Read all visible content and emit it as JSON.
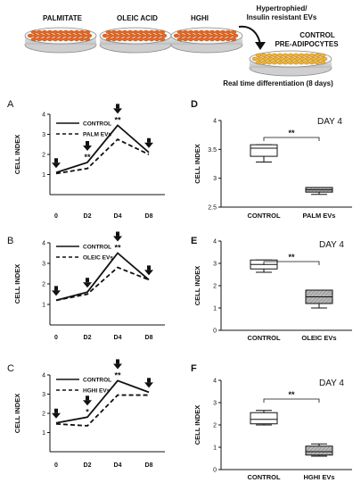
{
  "header": {
    "dishes": [
      "PALMITATE",
      "OLEIC ACID",
      "HGHI"
    ],
    "ev_label_line1": "Hypertrophied/",
    "ev_label_line2": "Insulin resistant EVs",
    "target_line1": "CONTROL",
    "target_line2": "PRE-ADIPOCYTES",
    "caption": "Real time differentiation (8 days)",
    "colors": {
      "dish_cells": "#e8661f",
      "target_cells": "#f0b62a"
    }
  },
  "chart_data": [
    {
      "panel": "A",
      "type": "line",
      "categories": [
        "0",
        "D2",
        "D4",
        "D8"
      ],
      "ylabel": "CELL INDEX",
      "ylim": [
        0,
        4
      ],
      "yticks": [
        1,
        2,
        3,
        4
      ],
      "series": [
        {
          "name": "CONTROL",
          "style": "solid",
          "values": [
            1.1,
            1.6,
            3.45,
            2.1
          ]
        },
        {
          "name": "PALM EVs",
          "style": "dashed",
          "values": [
            1.05,
            1.3,
            2.75,
            2.0
          ]
        }
      ],
      "significance": [
        "",
        "**",
        "**",
        ""
      ],
      "arrows": [
        true,
        true,
        true,
        true
      ]
    },
    {
      "panel": "B",
      "type": "line",
      "categories": [
        "0",
        "D2",
        "D4",
        "D8"
      ],
      "ylabel": "CELL INDEX",
      "ylim": [
        0,
        4
      ],
      "yticks": [
        1,
        2,
        3,
        4
      ],
      "series": [
        {
          "name": "CONTROL",
          "style": "solid",
          "values": [
            1.2,
            1.6,
            3.5,
            2.2
          ]
        },
        {
          "name": "OLEIC EVs",
          "style": "dashed",
          "values": [
            1.2,
            1.5,
            2.8,
            2.2
          ]
        }
      ],
      "significance": [
        "",
        "",
        "**",
        ""
      ],
      "arrows": [
        true,
        true,
        true,
        true
      ]
    },
    {
      "panel": "C",
      "type": "line",
      "categories": [
        "0",
        "D2",
        "D4",
        "D8"
      ],
      "ylabel": "CELL INDEX",
      "ylim": [
        0,
        4
      ],
      "yticks": [
        1,
        2,
        3,
        4
      ],
      "series": [
        {
          "name": "CONTROL",
          "style": "solid",
          "values": [
            1.5,
            1.8,
            3.7,
            3.1
          ]
        },
        {
          "name": "HGHI EVs",
          "style": "dashed",
          "values": [
            1.45,
            1.35,
            2.95,
            2.95
          ]
        }
      ],
      "significance": [
        "",
        "*",
        "**",
        ""
      ],
      "arrows": [
        true,
        true,
        true,
        true
      ]
    },
    {
      "panel": "D",
      "type": "box",
      "title": "DAY 4",
      "ylabel": "CELL INDEX",
      "ylim": [
        2.5,
        4
      ],
      "yticks": [
        2.5,
        3,
        3.5,
        4
      ],
      "categories": [
        "CONTROL",
        "PALM EVs"
      ],
      "boxes": [
        {
          "min": 3.28,
          "q1": 3.38,
          "median": 3.52,
          "q3": 3.58,
          "max": 3.58,
          "fill": "#ffffff"
        },
        {
          "min": 2.72,
          "q1": 2.76,
          "median": 2.8,
          "q3": 2.84,
          "max": 2.84,
          "fill": "#a8a8a8"
        }
      ],
      "significance": "**"
    },
    {
      "panel": "E",
      "type": "box",
      "title": "DAY 4",
      "ylabel": "CELL INDEX",
      "ylim": [
        0,
        4
      ],
      "yticks": [
        0,
        1,
        2,
        3,
        4
      ],
      "categories": [
        "CONTROL",
        "OLEIC EVs"
      ],
      "boxes": [
        {
          "min": 2.6,
          "q1": 2.75,
          "median": 2.95,
          "q3": 3.15,
          "max": 3.15,
          "fill": "#ffffff"
        },
        {
          "min": 1.0,
          "q1": 1.2,
          "median": 1.5,
          "q3": 1.8,
          "max": 1.8,
          "fill": "#a8a8a8"
        }
      ],
      "significance": "**"
    },
    {
      "panel": "F",
      "type": "box",
      "title": "DAY 4",
      "ylabel": "CELL INDEX",
      "ylim": [
        0,
        4
      ],
      "yticks": [
        0,
        1,
        2,
        3,
        4
      ],
      "categories": [
        "CONTROL",
        "HGHI EVs"
      ],
      "boxes": [
        {
          "min": 2.0,
          "q1": 2.05,
          "median": 2.25,
          "q3": 2.55,
          "max": 2.65,
          "fill": "#ffffff"
        },
        {
          "min": 0.6,
          "q1": 0.65,
          "median": 0.8,
          "q3": 1.05,
          "max": 1.15,
          "fill": "#a8a8a8"
        }
      ],
      "significance": "**"
    }
  ]
}
